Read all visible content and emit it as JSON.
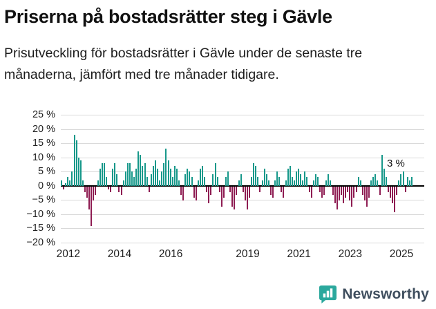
{
  "header": {
    "title": "Priserna på bostadsrätter steg i Gävle",
    "subtitle": "Prisutveckling för bostadsrätter i Gävle under de senaste tre månaderna, jämfört med tre månader tidigare."
  },
  "chart_data": {
    "type": "bar",
    "title": "Priserna på bostadsrätter steg i Gävle",
    "subtitle": "Prisutveckling för bostadsrätter i Gävle under de senaste tre månaderna, jämfört med tre månader tidigare.",
    "xlabel": "",
    "ylabel": "",
    "unit": "%",
    "frequency": "monthly",
    "x_start": "2011-10",
    "values": [
      2,
      -1,
      1,
      3,
      2,
      5,
      18,
      16,
      10,
      9,
      2,
      -2,
      -4,
      -8,
      -14,
      -5,
      -3,
      2,
      6,
      8,
      8,
      3,
      -1,
      -2,
      6,
      8,
      4,
      -2,
      -3,
      2,
      5,
      8,
      8,
      5,
      3,
      6,
      12,
      11,
      7,
      8,
      3,
      -2,
      4,
      7,
      9,
      6,
      2,
      5,
      8,
      13,
      9,
      6,
      3,
      7,
      6,
      2,
      -3,
      -5,
      4,
      6,
      5,
      3,
      -4,
      -5,
      2,
      6,
      7,
      3,
      -2,
      -6,
      -3,
      4,
      8,
      3,
      -2,
      -7,
      -4,
      3,
      5,
      -2,
      -7,
      -8,
      -3,
      2,
      4,
      -2,
      -5,
      -8,
      -4,
      3,
      8,
      7,
      3,
      -2,
      2,
      6,
      4,
      2,
      -3,
      -4,
      2,
      5,
      3,
      -2,
      -4,
      2,
      6,
      7,
      3,
      2,
      5,
      6,
      4,
      2,
      5,
      3,
      -2,
      -4,
      2,
      4,
      3,
      -2,
      -4,
      -3,
      2,
      4,
      2,
      -3,
      -6,
      -8,
      -5,
      -3,
      -6,
      -4,
      -2,
      -5,
      -7,
      -4,
      -2,
      3,
      2,
      -3,
      -5,
      -7,
      -4,
      2,
      3,
      4,
      2,
      -3,
      11,
      6,
      3,
      -2,
      -4,
      -6,
      -9,
      -3,
      2,
      4,
      5,
      -2,
      3,
      2,
      3
    ],
    "ylim": [
      -20,
      25
    ],
    "yticks": [
      25,
      20,
      15,
      10,
      5,
      0,
      -5,
      -10,
      -15,
      -20
    ],
    "ytick_labels": [
      "25 %",
      "20 %",
      "15 %",
      "10 %",
      "5 %",
      "0 %",
      "−5 %",
      "−10 %",
      "−15 %",
      "−20 %"
    ],
    "xtick_years": [
      2012,
      2014,
      2016,
      2019,
      2021,
      2023,
      2025
    ],
    "annotation": "3 %",
    "annotation_value": 3,
    "grid": true,
    "legend": "none",
    "colors": {
      "positive": "#17988a",
      "negative": "#8e1c52"
    }
  },
  "footer": {
    "brand": "Newsworthy",
    "logo_color": "#2ba89d"
  }
}
